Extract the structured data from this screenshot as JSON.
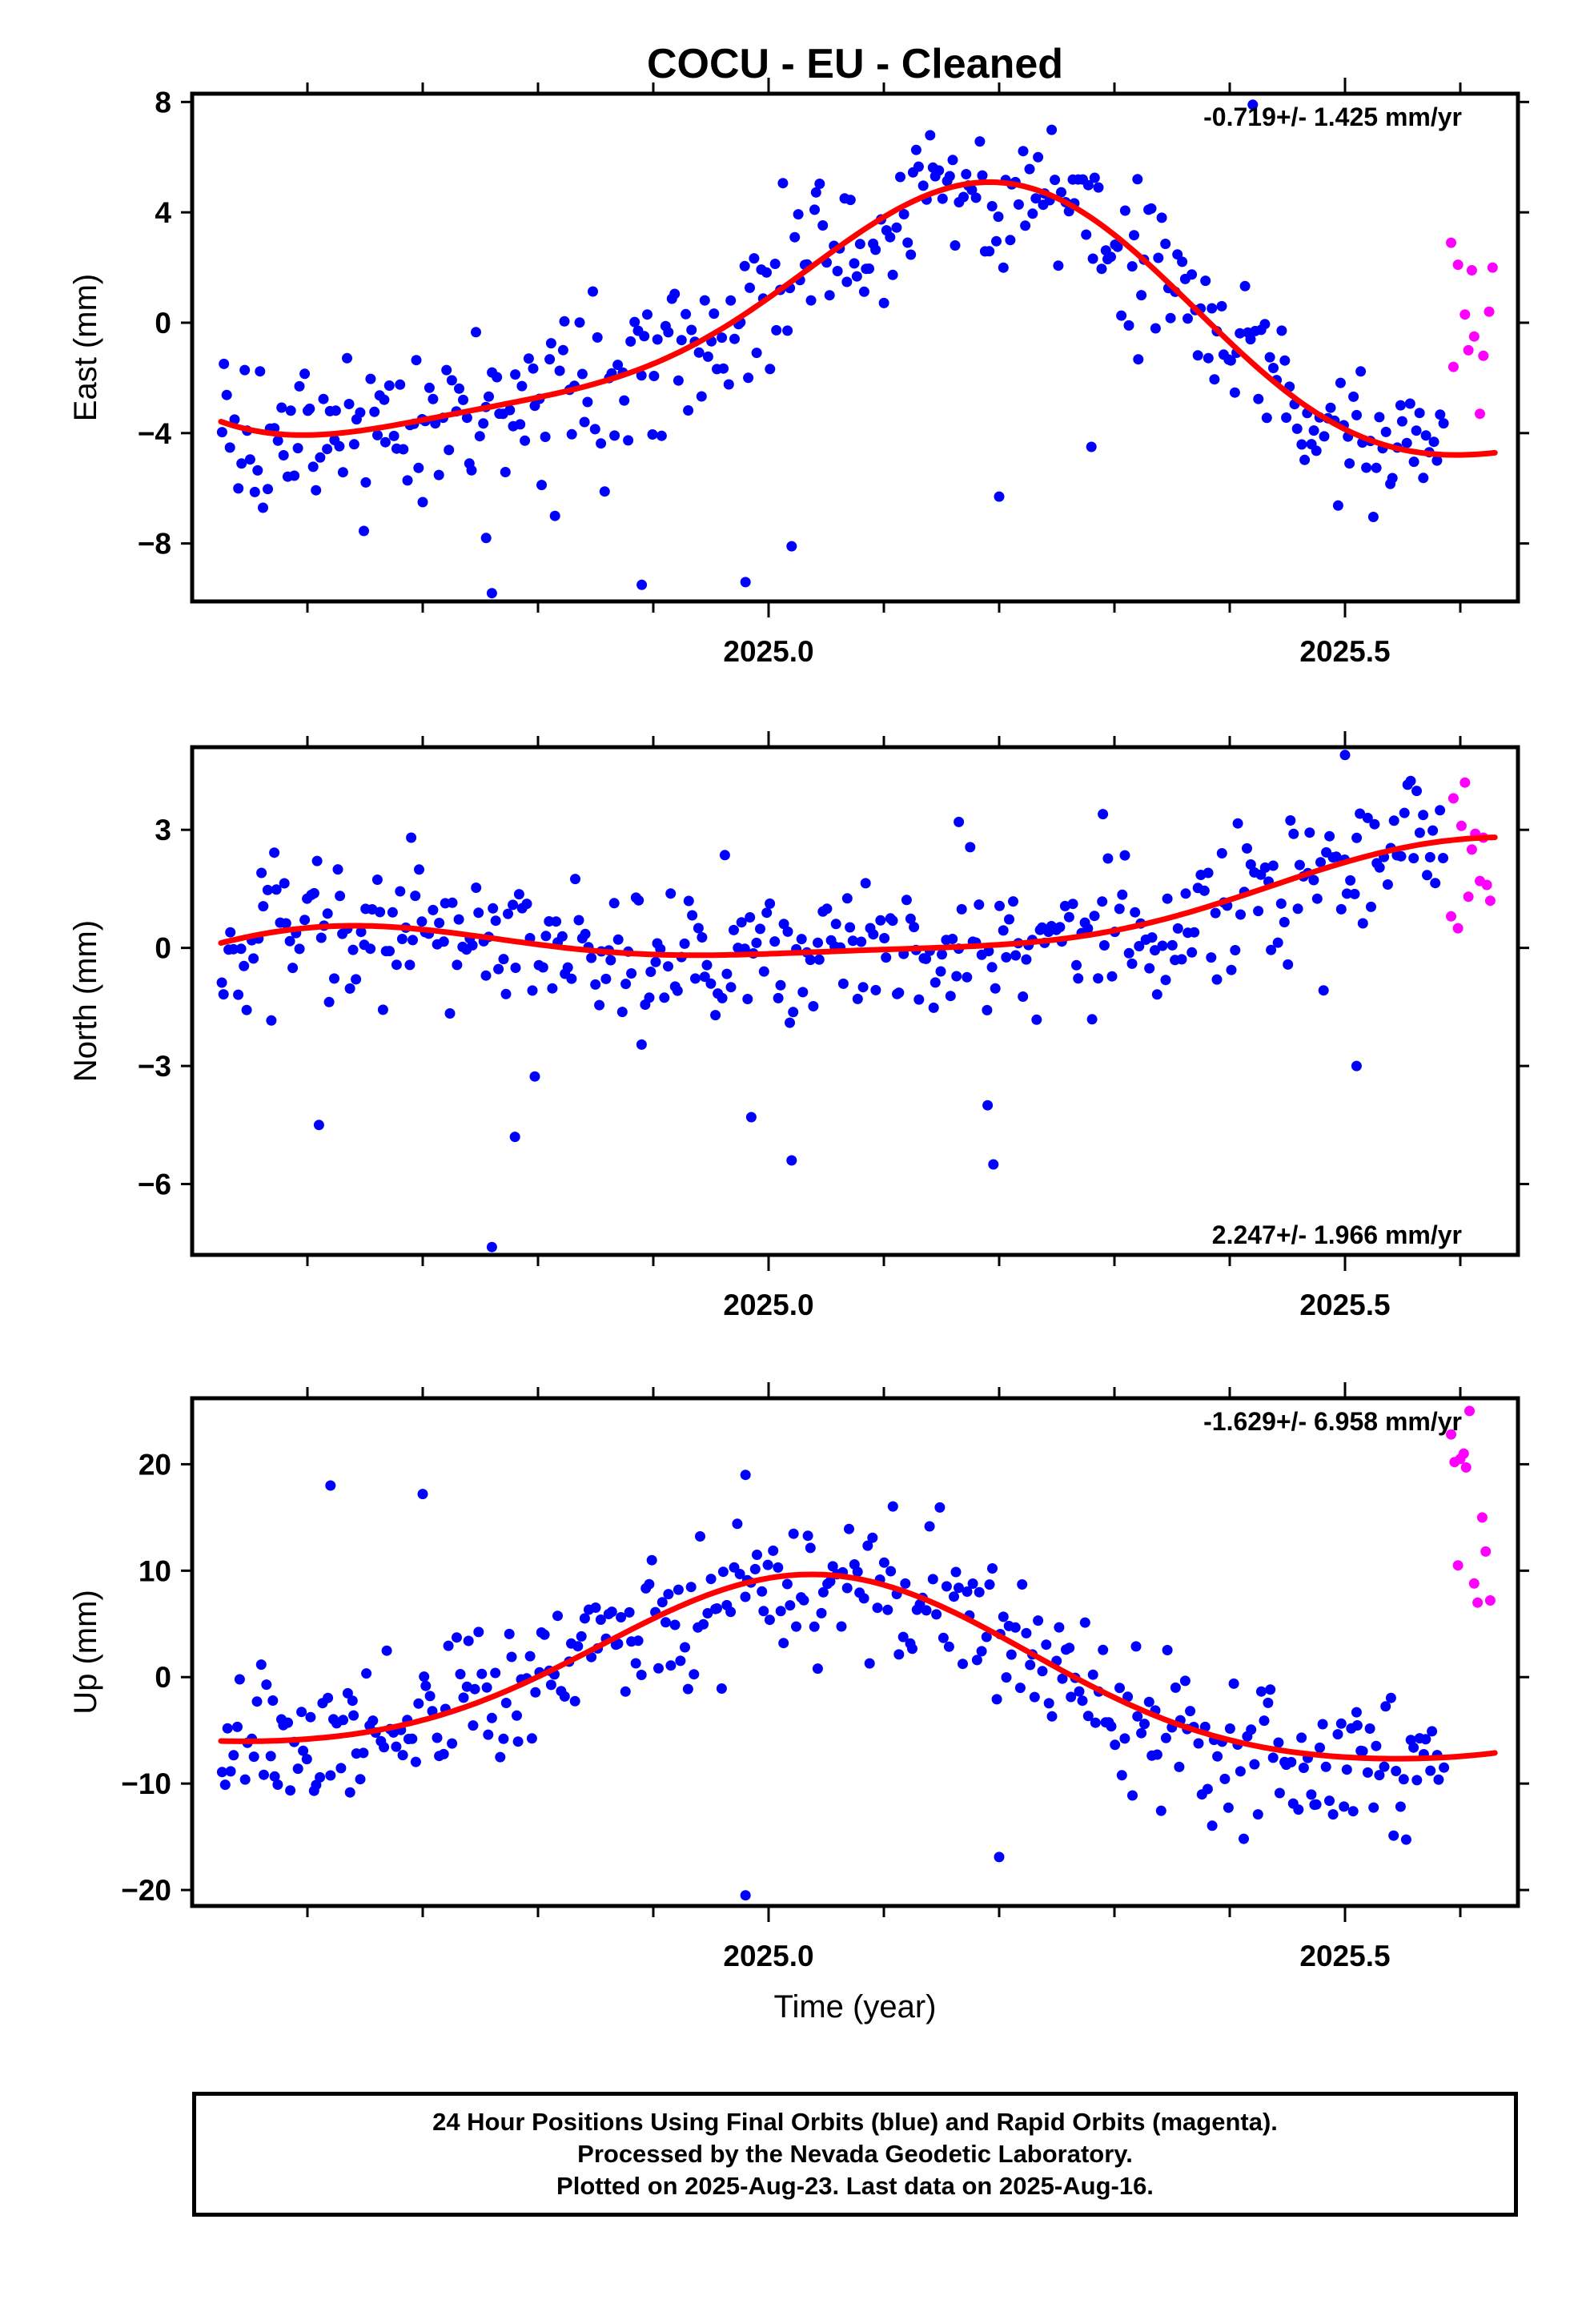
{
  "title": "COCU  - EU - Cleaned",
  "xlabel": "Time (year)",
  "colors": {
    "final": "#0000ff",
    "rapid": "#ff00ff",
    "fit": "#ff0000",
    "frame": "#000000"
  },
  "footer": {
    "line1": "24 Hour Positions Using Final Orbits (blue) and Rapid Orbits (magenta).",
    "line2": "Processed by the Nevada Geodetic Laboratory.",
    "line3": "Plotted on 2025-Aug-23. Last data on 2025-Aug-16."
  },
  "chart_data": [
    {
      "type": "scatter",
      "ylabel": "East (mm)",
      "velocity": "-0.719+/- 1.425 mm/yr",
      "velocity_position": "top-right",
      "xlim": [
        2024.5,
        2025.65
      ],
      "ylim": [
        -10.1,
        8.3
      ],
      "yticks": [
        -8,
        -4,
        0,
        4,
        8
      ],
      "xticks": [
        2025.0,
        2025.5
      ],
      "fit": {
        "x0": 2024.525,
        "x1": 2025.63,
        "a": -0.3,
        "b": -0.72,
        "c": 2.2,
        "d": 4.0,
        "e": -1.0,
        "f": 0.4
      },
      "noise": 1.4,
      "outliers": [
        [
          2024.76,
          -9.8
        ],
        [
          2024.89,
          -9.5
        ],
        [
          2024.98,
          -9.4
        ],
        [
          2025.02,
          -8.1
        ],
        [
          2024.755,
          -7.8
        ],
        [
          2024.7,
          -6.5
        ],
        [
          2025.2,
          -6.3
        ],
        [
          2025.42,
          7.9
        ],
        [
          2025.32,
          5.2
        ],
        [
          2025.28,
          -4.5
        ]
      ],
      "rapid": [
        [
          2025.592,
          2.9
        ],
        [
          2025.594,
          -1.6
        ],
        [
          2025.598,
          2.1
        ],
        [
          2025.604,
          0.3
        ],
        [
          2025.607,
          -1.0
        ],
        [
          2025.61,
          1.9
        ],
        [
          2025.612,
          -0.5
        ],
        [
          2025.617,
          -3.3
        ],
        [
          2025.62,
          -1.2
        ],
        [
          2025.625,
          0.4
        ],
        [
          2025.628,
          2.0
        ]
      ]
    },
    {
      "type": "scatter",
      "ylabel": "North (mm)",
      "velocity": "2.247+/- 1.966 mm/yr",
      "velocity_position": "bottom-right",
      "xlim": [
        2024.5,
        2025.65
      ],
      "ylim": [
        -7.8,
        5.1
      ],
      "yticks": [
        -6,
        -3,
        0,
        3
      ],
      "xticks": [
        2025.0,
        2025.5
      ],
      "fit": {
        "x0": 2024.525,
        "x1": 2025.63,
        "a": 0.35,
        "b": 2.25,
        "c": -0.6,
        "d": -0.6,
        "e": 0.1,
        "f": 0.2
      },
      "noise": 0.95,
      "outliers": [
        [
          2024.76,
          -7.6
        ],
        [
          2024.78,
          -4.8
        ],
        [
          2024.61,
          -4.5
        ],
        [
          2024.985,
          -4.3
        ],
        [
          2025.02,
          -5.4
        ],
        [
          2025.195,
          -5.5
        ],
        [
          2025.19,
          -4.0
        ],
        [
          2025.51,
          -3.0
        ],
        [
          2025.5,
          4.9
        ],
        [
          2025.165,
          3.2
        ],
        [
          2025.29,
          3.4
        ],
        [
          2024.69,
          2.8
        ]
      ],
      "rapid": [
        [
          2025.592,
          0.8
        ],
        [
          2025.594,
          3.8
        ],
        [
          2025.598,
          0.5
        ],
        [
          2025.601,
          3.1
        ],
        [
          2025.604,
          4.2
        ],
        [
          2025.607,
          1.3
        ],
        [
          2025.61,
          2.5
        ],
        [
          2025.613,
          2.9
        ],
        [
          2025.617,
          1.7
        ],
        [
          2025.62,
          2.8
        ],
        [
          2025.623,
          1.6
        ],
        [
          2025.626,
          1.2
        ]
      ]
    },
    {
      "type": "scatter",
      "ylabel": "Up (mm)",
      "velocity": "-1.629+/- 6.958 mm/yr",
      "velocity_position": "top-right",
      "xlim": [
        2024.5,
        2025.65
      ],
      "ylim": [
        -21.5,
        26.2
      ],
      "yticks": [
        -20,
        -10,
        0,
        10,
        20
      ],
      "xticks": [
        2025.0,
        2025.5
      ],
      "fit": {
        "x0": 2024.525,
        "x1": 2025.63,
        "a": 0.3,
        "b": -1.63,
        "c": 8.0,
        "d": 2.0,
        "e": 1.0,
        "f": 0.6
      },
      "noise": 3.4,
      "outliers": [
        [
          2024.98,
          19.0
        ],
        [
          2024.98,
          -20.5
        ],
        [
          2025.2,
          -16.9
        ],
        [
          2024.57,
          -2.2
        ],
        [
          2024.62,
          18.0
        ],
        [
          2024.7,
          17.2
        ],
        [
          2025.51,
          -3.3
        ],
        [
          2024.64,
          -3.6
        ]
      ],
      "rapid": [
        [
          2025.592,
          22.8
        ],
        [
          2025.595,
          20.2
        ],
        [
          2025.598,
          10.5
        ],
        [
          2025.6,
          20.5
        ],
        [
          2025.603,
          21.0
        ],
        [
          2025.605,
          19.7
        ],
        [
          2025.608,
          25.0
        ],
        [
          2025.612,
          8.8
        ],
        [
          2025.615,
          7.0
        ],
        [
          2025.619,
          15.0
        ],
        [
          2025.622,
          11.8
        ],
        [
          2025.626,
          7.2
        ]
      ]
    }
  ]
}
